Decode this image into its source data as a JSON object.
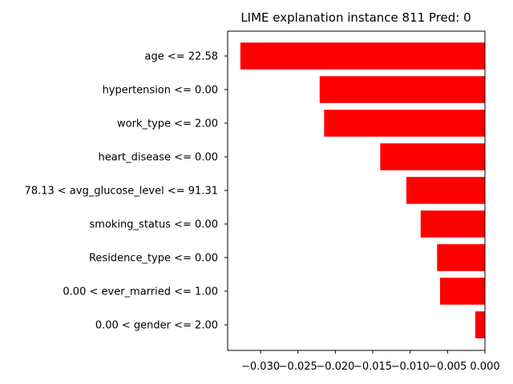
{
  "chart_data": {
    "type": "bar",
    "orientation": "horizontal",
    "title": "LIME explanation instance 811 Pred: 0",
    "xlabel": "",
    "ylabel": "",
    "categories": [
      "age <= 22.58",
      "hypertension <= 0.00",
      "work_type <= 2.00",
      "heart_disease <= 0.00",
      "78.13 < avg_glucose_level <= 91.31",
      "smoking_status <= 0.00",
      "Residence_type <= 0.00",
      "0.00 < ever_married <= 1.00",
      "0.00 < gender <= 2.00"
    ],
    "values": [
      -0.0327,
      -0.0221,
      -0.0215,
      -0.014,
      -0.0105,
      -0.0086,
      -0.0064,
      -0.006,
      -0.0013
    ],
    "xlim": [
      -0.0344,
      0.0
    ],
    "xticks": [
      -0.03,
      -0.025,
      -0.02,
      -0.015,
      -0.01,
      -0.005,
      0.0
    ],
    "xtick_labels": [
      "−0.030",
      "−0.025",
      "−0.020",
      "−0.015",
      "−0.010",
      "−0.005",
      "0.000"
    ],
    "bar_color": "#ff0000",
    "grid": false,
    "legend": "none"
  }
}
